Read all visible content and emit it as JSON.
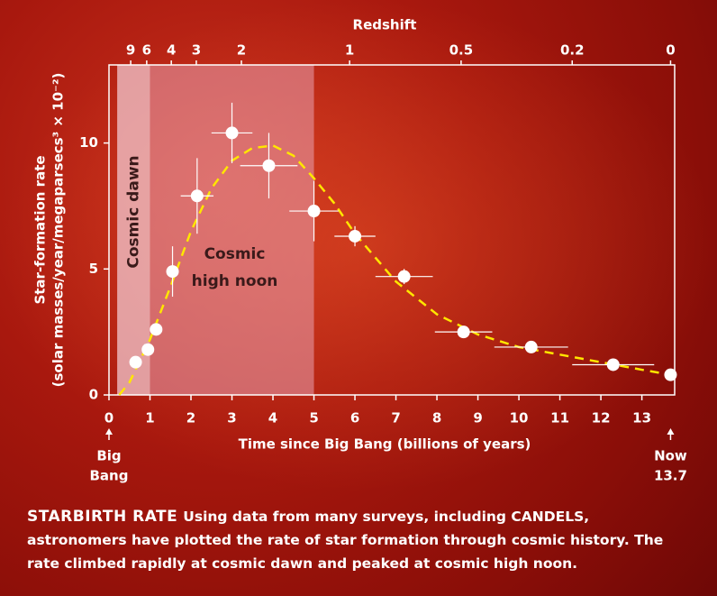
{
  "chart_data": {
    "type": "scatter",
    "x_label": "Time since Big Bang (billions of years)",
    "y_label_lines": [
      "Star-formation rate",
      "(solar masses/year/megaparsecs³ × 10⁻²)"
    ],
    "top_axis_label": "Redshift",
    "xlim": [
      0,
      13.8
    ],
    "ylim": [
      0,
      13.1
    ],
    "xticks": [
      0,
      1,
      2,
      3,
      4,
      5,
      6,
      7,
      8,
      9,
      10,
      11,
      12,
      13
    ],
    "yticks": [
      0,
      5,
      10
    ],
    "top_ticks": [
      {
        "value": 0.53,
        "label": "9"
      },
      {
        "value": 0.92,
        "label": "6"
      },
      {
        "value": 1.52,
        "label": "4"
      },
      {
        "value": 2.13,
        "label": "3"
      },
      {
        "value": 3.23,
        "label": "2"
      },
      {
        "value": 5.87,
        "label": "1"
      },
      {
        "value": 8.59,
        "label": "0.5"
      },
      {
        "value": 11.3,
        "label": "0.2"
      },
      {
        "value": 13.7,
        "label": "0"
      }
    ],
    "regions": [
      {
        "label_lines": [
          "Cosmic dawn"
        ],
        "x": [
          0.2,
          1.0
        ],
        "color": "#f2c8d0",
        "opacity": 0.75,
        "vertical": true
      },
      {
        "label_lines": [
          "Cosmic",
          "high noon"
        ],
        "x": [
          1.0,
          5.0
        ],
        "color": "#e8a0b0",
        "opacity": 0.55,
        "vertical": false
      }
    ],
    "series": [
      {
        "color": "#ffffff",
        "x": [
          0.65,
          0.95,
          1.15,
          1.55,
          2.15,
          3.0,
          3.9,
          5.0,
          6.0,
          7.2,
          8.65,
          10.3,
          12.3,
          13.7
        ],
        "values": [
          1.3,
          1.8,
          2.6,
          4.9,
          7.9,
          10.4,
          9.1,
          7.3,
          6.3,
          4.7,
          2.5,
          1.9,
          1.2,
          0.8
        ],
        "xerr": [
          0,
          0,
          0,
          0.15,
          0.4,
          0.5,
          0.7,
          0.6,
          0.5,
          0.7,
          0.7,
          0.9,
          1.0,
          0
        ],
        "yerr": [
          0,
          0,
          0,
          1.0,
          1.5,
          1.2,
          1.3,
          1.2,
          0.4,
          0.3,
          0.2,
          0.15,
          0.1,
          0
        ]
      },
      {
        "color": "#ffe600",
        "style": "dashed",
        "x": [
          0.25,
          0.5,
          1,
          1.5,
          2,
          2.5,
          3,
          3.5,
          4,
          4.5,
          5,
          5.5,
          6,
          7,
          8,
          9,
          10,
          11,
          12,
          13,
          13.7
        ],
        "values": [
          0,
          0.5,
          2.2,
          4.3,
          6.5,
          8.2,
          9.3,
          9.8,
          9.9,
          9.5,
          8.6,
          7.6,
          6.4,
          4.5,
          3.2,
          2.4,
          1.9,
          1.6,
          1.3,
          1.0,
          0.8
        ]
      }
    ],
    "annotations": [
      {
        "x": 0,
        "lines": [
          "Big",
          "Bang"
        ]
      },
      {
        "x": 13.7,
        "lines": [
          "Now",
          "13.7"
        ]
      }
    ]
  },
  "caption": {
    "lead": "STARBIRTH RATE",
    "text": "Using data from many surveys, including CANDELS, astronomers have plotted the rate of star formation through cosmic history. The rate climbed rapidly at cosmic dawn and peaked at cosmic high noon."
  }
}
